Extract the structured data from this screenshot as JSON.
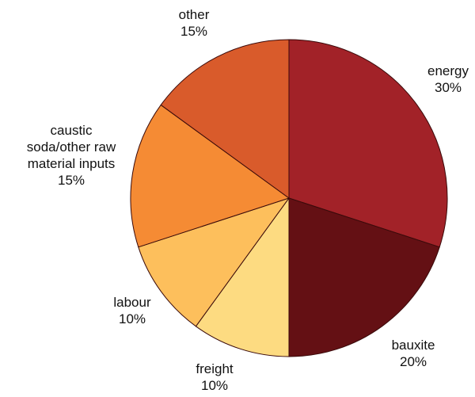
{
  "chart_data": {
    "type": "pie",
    "start_angle_deg": 0,
    "direction": "clockwise",
    "slices": [
      {
        "label_lines": [
          "energy",
          "30%"
        ],
        "value": 30,
        "color": "#a22228"
      },
      {
        "label_lines": [
          "bauxite",
          "20%"
        ],
        "value": 20,
        "color": "#641014"
      },
      {
        "label_lines": [
          "freight",
          "10%"
        ],
        "value": 10,
        "color": "#fddb81"
      },
      {
        "label_lines": [
          "labour",
          "10%"
        ],
        "value": 10,
        "color": "#fdbf5c"
      },
      {
        "label_lines": [
          "caustic",
          "soda/other raw",
          "material inputs",
          "15%"
        ],
        "value": 15,
        "color": "#f58b34"
      },
      {
        "label_lines": [
          "other",
          "15%"
        ],
        "value": 15,
        "color": "#d95b2b"
      }
    ],
    "edge_color": "#3a0a0a"
  }
}
